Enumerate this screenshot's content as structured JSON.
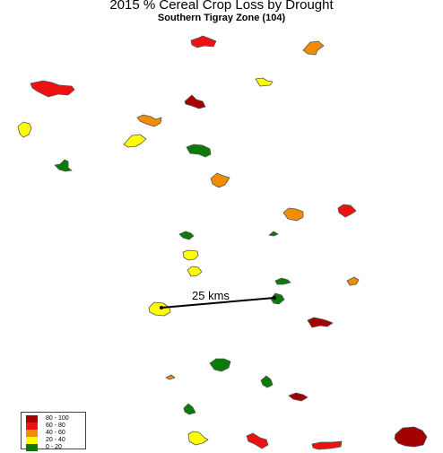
{
  "title": "2015 % Cereal Crop Loss by Drought",
  "subtitle": "Southern Tigray Zone (104)",
  "scale_bar": {
    "label": "25 kms"
  },
  "legend": [
    {
      "label": "80 - 100",
      "color": "#a50000"
    },
    {
      "label": "60 - 80",
      "color": "#ee1111"
    },
    {
      "label": "40 - 60",
      "color": "#f28c00"
    },
    {
      "label": "20 - 40",
      "color": "#ffff00"
    },
    {
      "label": "0 - 20",
      "color": "#0a7a0a"
    }
  ],
  "colors": {
    "c80_100": "#a50000",
    "c60_80": "#ee1111",
    "c40_60": "#f28c00",
    "c20_40": "#ffff00",
    "c0_20": "#0a7a0a"
  }
}
